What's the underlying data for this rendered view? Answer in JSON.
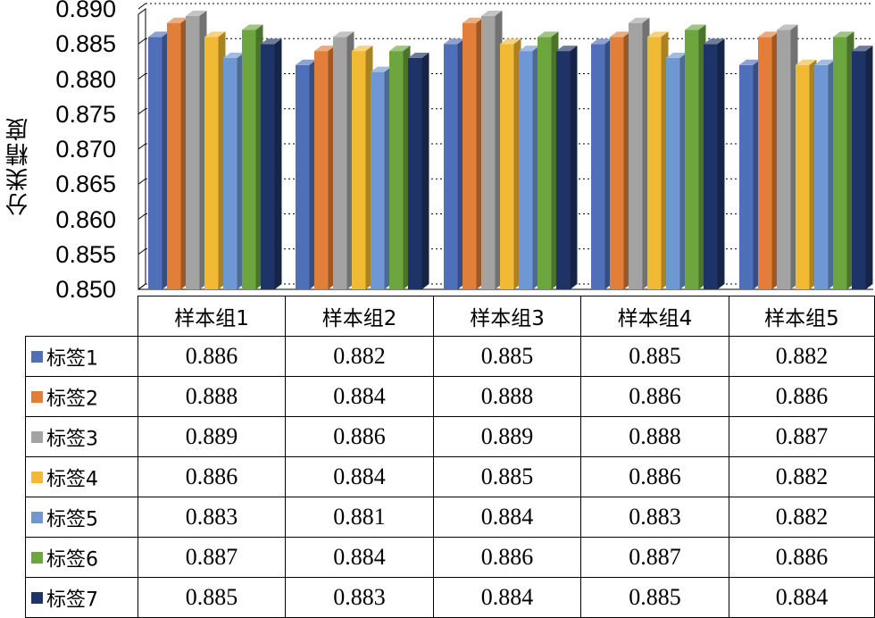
{
  "chart_data": {
    "type": "bar",
    "ylabel": "分类精度",
    "ylim": [
      0.85,
      0.89
    ],
    "yticks": [
      "0.850",
      "0.855",
      "0.860",
      "0.865",
      "0.870",
      "0.875",
      "0.880",
      "0.885",
      "0.890"
    ],
    "grid": "horizontal dotted",
    "legend_placement": "data table, left column",
    "categories": [
      "样本组1",
      "样本组2",
      "样本组3",
      "样本组4",
      "样本组5"
    ],
    "series": [
      {
        "name": "标签1",
        "color": "#4F6FB8",
        "values": [
          0.886,
          0.882,
          0.885,
          0.885,
          0.882
        ],
        "labels": [
          "0.886",
          "0.882",
          "0.885",
          "0.885",
          "0.882"
        ]
      },
      {
        "name": "标签2",
        "color": "#E07E3A",
        "values": [
          0.888,
          0.884,
          0.888,
          0.886,
          0.886
        ],
        "labels": [
          "0.888",
          "0.884",
          "0.888",
          "0.886",
          "0.886"
        ]
      },
      {
        "name": "标签3",
        "color": "#A3A3A3",
        "values": [
          0.889,
          0.886,
          0.889,
          0.888,
          0.887
        ],
        "labels": [
          "0.889",
          "0.886",
          "0.889",
          "0.888",
          "0.887"
        ]
      },
      {
        "name": "标签4",
        "color": "#F2B934",
        "values": [
          0.886,
          0.884,
          0.885,
          0.886,
          0.882
        ],
        "labels": [
          "0.886",
          "0.884",
          "0.885",
          "0.886",
          "0.882"
        ]
      },
      {
        "name": "标签5",
        "color": "#6F97D4",
        "values": [
          0.883,
          0.881,
          0.884,
          0.883,
          0.882
        ],
        "labels": [
          "0.883",
          "0.881",
          "0.884",
          "0.883",
          "0.882"
        ]
      },
      {
        "name": "标签6",
        "color": "#6DA53E",
        "values": [
          0.887,
          0.884,
          0.886,
          0.887,
          0.886
        ],
        "labels": [
          "0.887",
          "0.884",
          "0.886",
          "0.887",
          "0.886"
        ]
      },
      {
        "name": "标签7",
        "color": "#1E3466",
        "values": [
          0.885,
          0.883,
          0.884,
          0.885,
          0.884
        ],
        "labels": [
          "0.885",
          "0.883",
          "0.884",
          "0.885",
          "0.884"
        ]
      }
    ]
  }
}
